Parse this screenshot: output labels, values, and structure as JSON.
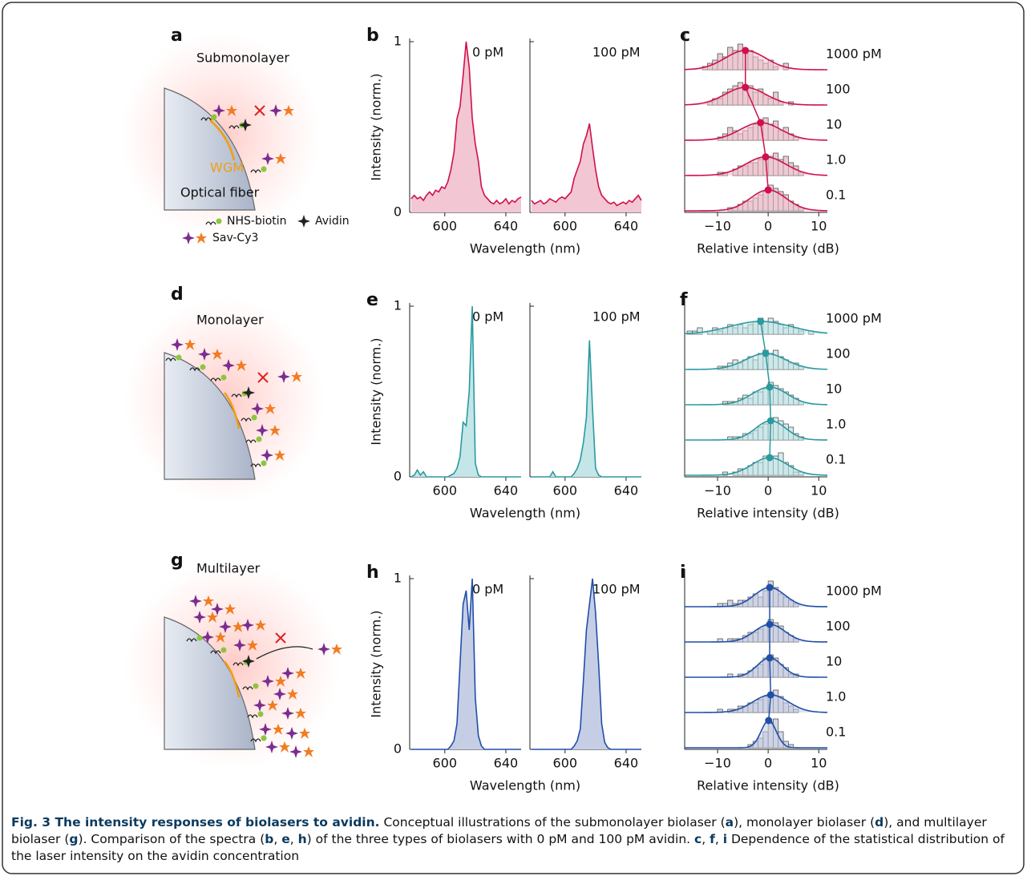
{
  "illustrations": [
    {
      "label": "a",
      "title": "Submonolayer",
      "wgm": "WGM",
      "fiber": "Optical fiber"
    },
    {
      "label": "d",
      "title": "Monolayer"
    },
    {
      "label": "g",
      "title": "Multilayer"
    }
  ],
  "legend": {
    "nhs_biotin": "NHS-biotin",
    "avidin": "Avidin",
    "sav_cy3": "Sav-Cy3"
  },
  "chart_data": [
    {
      "type": "spectrum",
      "panel_label": "b",
      "ylabel": "Intensity (norm.)",
      "xlabel": "Wavelength (nm)",
      "color": "#d0104c",
      "fill_color": "#f2c6d2",
      "xlim": [
        577,
        650
      ],
      "xticks": [
        600,
        640
      ],
      "ylim": [
        0,
        1
      ],
      "yticks": [
        0,
        1
      ],
      "x": [
        578,
        580,
        582,
        584,
        586,
        588,
        590,
        592,
        594,
        596,
        598,
        600,
        602,
        604,
        606,
        608,
        610,
        612,
        614,
        616,
        618,
        620,
        622,
        624,
        626,
        628,
        630,
        632,
        634,
        636,
        638,
        640,
        642,
        644,
        646,
        648,
        650
      ],
      "series": [
        {
          "name": "0 pM",
          "values": [
            0.08,
            0.1,
            0.08,
            0.09,
            0.07,
            0.1,
            0.12,
            0.1,
            0.13,
            0.12,
            0.15,
            0.14,
            0.18,
            0.25,
            0.35,
            0.55,
            0.62,
            0.8,
            1.0,
            0.85,
            0.55,
            0.4,
            0.3,
            0.15,
            0.1,
            0.08,
            0.06,
            0.05,
            0.07,
            0.05,
            0.06,
            0.08,
            0.05,
            0.07,
            0.06,
            0.08,
            0.09
          ]
        },
        {
          "name": "100 pM",
          "values": [
            0.07,
            0.05,
            0.06,
            0.07,
            0.05,
            0.06,
            0.08,
            0.07,
            0.06,
            0.08,
            0.09,
            0.08,
            0.1,
            0.12,
            0.2,
            0.25,
            0.3,
            0.4,
            0.45,
            0.52,
            0.38,
            0.25,
            0.15,
            0.1,
            0.08,
            0.06,
            0.05,
            0.06,
            0.04,
            0.05,
            0.06,
            0.05,
            0.07,
            0.06,
            0.08,
            0.1,
            0.07
          ]
        }
      ]
    },
    {
      "type": "ridgeline",
      "panel_label": "c",
      "xlabel": "Relative intensity (dB)",
      "color": "#d0104c",
      "fill_color": "#f2c6d2",
      "bar_color": "#e9cbd2",
      "xlim": [
        -16.5,
        11.7
      ],
      "xticks": [
        {
          "value": -10,
          "label": "−10"
        },
        0,
        10
      ],
      "bins": [
        -16,
        -15,
        -14,
        -13,
        -12,
        -11,
        -10,
        -9,
        -8,
        -7,
        -6,
        -5,
        -4,
        -3,
        -2,
        -1,
        0,
        1,
        2,
        3,
        4,
        5,
        6,
        7,
        8,
        9,
        10
      ],
      "series": [
        {
          "name": "1000 pM",
          "counts": [
            0,
            0,
            0,
            1,
            2,
            3,
            5,
            4,
            7,
            6,
            8,
            5,
            6,
            4,
            3,
            2,
            3,
            1,
            0,
            2,
            0,
            0,
            0,
            0,
            0,
            0
          ],
          "fit_mean": -4.5,
          "fit_sd": 4,
          "fit_height": 6
        },
        {
          "name": "100",
          "counts": [
            0,
            0,
            0,
            0,
            1,
            2,
            2,
            4,
            5,
            6,
            7,
            5,
            6,
            4,
            5,
            3,
            2,
            4,
            1,
            0,
            1,
            0,
            0,
            0,
            0,
            0
          ],
          "fit_mean": -4.5,
          "fit_sd": 4,
          "fit_height": 5.5
        },
        {
          "name": "10",
          "counts": [
            0,
            0,
            0,
            0,
            0,
            0,
            1,
            2,
            4,
            3,
            2,
            3,
            4,
            5,
            6,
            7,
            5,
            6,
            3,
            4,
            2,
            1,
            0,
            0,
            0,
            0
          ],
          "fit_mean": -1.5,
          "fit_sd": 4,
          "fit_height": 5.5
        },
        {
          "name": "1.0",
          "counts": [
            0,
            0,
            0,
            0,
            0,
            0,
            1,
            1,
            0,
            2,
            3,
            3,
            4,
            4,
            5,
            6,
            6,
            7,
            5,
            6,
            4,
            3,
            1,
            0,
            0,
            0
          ],
          "fit_mean": -0.5,
          "fit_sd": 4,
          "fit_height": 5.8
        },
        {
          "name": "0.1",
          "counts": [
            0,
            0,
            0,
            0,
            0,
            0,
            0,
            0,
            1,
            1,
            2,
            3,
            3,
            4,
            5,
            6,
            8,
            7,
            6,
            5,
            3,
            2,
            1,
            0,
            0,
            0
          ],
          "fit_mean": 0,
          "fit_sd": 3.5,
          "fit_height": 6.5
        }
      ]
    },
    {
      "type": "spectrum",
      "panel_label": "e",
      "ylabel": "Intensity (norm.)",
      "xlabel": "Wavelength (nm)",
      "color": "#2a9aa0",
      "fill_color": "#c4e6e8",
      "xlim": [
        577,
        650
      ],
      "xticks": [
        600,
        640
      ],
      "ylim": [
        0,
        1
      ],
      "yticks": [
        0,
        1
      ],
      "x": [
        578,
        580,
        582,
        584,
        586,
        588,
        590,
        592,
        594,
        596,
        598,
        600,
        602,
        604,
        606,
        608,
        610,
        612,
        614,
        616,
        618,
        620,
        622,
        624,
        626,
        628,
        630,
        632,
        634,
        636,
        638,
        640,
        642,
        644,
        646,
        648,
        650
      ],
      "series": [
        {
          "name": "0 pM",
          "values": [
            0,
            0.01,
            0.04,
            0.01,
            0.03,
            0,
            0,
            0,
            0,
            0,
            0,
            0,
            0,
            0.01,
            0.02,
            0.05,
            0.12,
            0.32,
            0.3,
            0.5,
            1.0,
            0.08,
            0.01,
            0,
            0,
            0,
            0,
            0,
            0,
            0,
            0,
            0,
            0,
            0,
            0,
            0,
            0
          ]
        },
        {
          "name": "100 pM",
          "values": [
            0,
            0,
            0,
            0,
            0,
            0,
            0,
            0.03,
            0,
            0,
            0,
            0,
            0,
            0,
            0.02,
            0.05,
            0.1,
            0.2,
            0.35,
            0.8,
            0.4,
            0.05,
            0.01,
            0,
            0,
            0,
            0,
            0,
            0,
            0,
            0,
            0,
            0,
            0,
            0,
            0,
            0
          ]
        }
      ]
    },
    {
      "type": "ridgeline",
      "panel_label": "f",
      "xlabel": "Relative intensity (dB)",
      "color": "#2a9aa0",
      "fill_color": "#c4e6e8",
      "bar_color": "#d3ecee",
      "xlim": [
        -16.5,
        11.7
      ],
      "xticks": [
        {
          "value": -10,
          "label": "−10"
        },
        0,
        10
      ],
      "bins": [
        -16,
        -15,
        -14,
        -13,
        -12,
        -11,
        -10,
        -9,
        -8,
        -7,
        -6,
        -5,
        -4,
        -3,
        -2,
        -1,
        0,
        1,
        2,
        3,
        4,
        5,
        6,
        7,
        8,
        9,
        10
      ],
      "series": [
        {
          "name": "1000 pM",
          "counts": [
            1,
            1,
            2,
            0,
            1,
            2,
            1,
            2,
            3,
            2,
            3,
            2,
            3,
            4,
            5,
            4,
            5,
            4,
            3,
            2,
            3,
            2,
            1,
            0,
            1,
            0
          ],
          "fit_mean": -1.5,
          "fit_sd": 6,
          "fit_height": 4
        },
        {
          "name": "100",
          "counts": [
            0,
            0,
            0,
            0,
            0,
            0,
            1,
            1,
            2,
            3,
            2,
            3,
            4,
            3,
            5,
            6,
            5,
            6,
            4,
            3,
            2,
            2,
            1,
            0,
            0,
            0
          ],
          "fit_mean": -0.5,
          "fit_sd": 4,
          "fit_height": 5
        },
        {
          "name": "10",
          "counts": [
            0,
            0,
            0,
            0,
            0,
            0,
            0,
            1,
            1,
            1,
            2,
            3,
            2,
            4,
            4,
            5,
            7,
            6,
            5,
            4,
            3,
            2,
            1,
            0,
            0,
            0
          ],
          "fit_mean": 0.3,
          "fit_sd": 3.5,
          "fit_height": 5.5
        },
        {
          "name": "1.0",
          "counts": [
            0,
            0,
            0,
            0,
            0,
            0,
            0,
            0,
            1,
            1,
            1,
            2,
            2,
            3,
            4,
            5,
            6,
            7,
            6,
            5,
            4,
            2,
            1,
            0,
            0,
            0
          ],
          "fit_mean": 0.5,
          "fit_sd": 3,
          "fit_height": 6
        },
        {
          "name": "0.1",
          "counts": [
            0,
            0,
            0,
            0,
            0,
            0,
            0,
            1,
            0,
            1,
            2,
            2,
            3,
            4,
            4,
            6,
            5,
            6,
            7,
            4,
            3,
            1,
            1,
            0,
            0,
            0
          ],
          "fit_mean": 0.3,
          "fit_sd": 3.5,
          "fit_height": 5.5
        }
      ]
    },
    {
      "type": "spectrum",
      "panel_label": "h",
      "ylabel": "Intensity (norm.)",
      "xlabel": "Wavelength (nm)",
      "color": "#1f4fa8",
      "fill_color": "#c6cee6",
      "xlim": [
        577,
        650
      ],
      "xticks": [
        600,
        640
      ],
      "ylim": [
        0,
        1
      ],
      "yticks": [
        0,
        1
      ],
      "x": [
        578,
        580,
        582,
        584,
        586,
        588,
        590,
        592,
        594,
        596,
        598,
        600,
        602,
        604,
        606,
        608,
        610,
        612,
        614,
        616,
        618,
        620,
        622,
        624,
        626,
        628,
        630,
        632,
        634,
        636,
        638,
        640,
        642,
        644,
        646,
        648,
        650
      ],
      "series": [
        {
          "name": "0 pM",
          "values": [
            0,
            0,
            0,
            0,
            0,
            0,
            0,
            0,
            0,
            0,
            0,
            0,
            0,
            0.02,
            0.05,
            0.15,
            0.5,
            0.85,
            0.93,
            0.7,
            1.0,
            0.3,
            0.08,
            0.02,
            0,
            0,
            0,
            0,
            0,
            0,
            0,
            0,
            0,
            0,
            0,
            0,
            0
          ]
        },
        {
          "name": "100 pM",
          "values": [
            0,
            0,
            0,
            0,
            0,
            0,
            0,
            0,
            0,
            0,
            0,
            0,
            0,
            0,
            0.02,
            0.05,
            0.12,
            0.4,
            0.7,
            0.85,
            1.0,
            0.8,
            0.5,
            0.15,
            0.04,
            0.01,
            0,
            0,
            0,
            0,
            0,
            0,
            0,
            0,
            0,
            0,
            0
          ]
        }
      ]
    },
    {
      "type": "ridgeline",
      "panel_label": "i",
      "xlabel": "Relative intensity (dB)",
      "color": "#1f4fa8",
      "fill_color": "#c6cee6",
      "bar_color": "#d4d8e6",
      "xlim": [
        -16.5,
        11.7
      ],
      "xticks": [
        {
          "value": -10,
          "label": "−10"
        },
        0,
        10
      ],
      "bins": [
        -16,
        -15,
        -14,
        -13,
        -12,
        -11,
        -10,
        -9,
        -8,
        -7,
        -6,
        -5,
        -4,
        -3,
        -2,
        -1,
        0,
        1,
        2,
        3,
        4,
        5,
        6,
        7,
        8,
        9,
        10
      ],
      "series": [
        {
          "name": "1000 pM",
          "counts": [
            0,
            0,
            0,
            0,
            0,
            0,
            1,
            1,
            2,
            1,
            2,
            2,
            3,
            4,
            3,
            5,
            8,
            6,
            4,
            3,
            2,
            1,
            0,
            0,
            0,
            0
          ],
          "fit_mean": 0.3,
          "fit_sd": 3,
          "fit_height": 6
        },
        {
          "name": "100",
          "counts": [
            0,
            0,
            0,
            0,
            0,
            0,
            1,
            0,
            1,
            1,
            1,
            2,
            3,
            3,
            4,
            5,
            7,
            6,
            5,
            3,
            2,
            1,
            0,
            0,
            0,
            0
          ],
          "fit_mean": 0.3,
          "fit_sd": 3,
          "fit_height": 5.5
        },
        {
          "name": "10",
          "counts": [
            0,
            0,
            0,
            0,
            0,
            0,
            0,
            0,
            1,
            0,
            1,
            1,
            2,
            3,
            4,
            6,
            7,
            6,
            4,
            3,
            1,
            1,
            0,
            0,
            0,
            0
          ],
          "fit_mean": 0.3,
          "fit_sd": 2.5,
          "fit_height": 6
        },
        {
          "name": "1.0",
          "counts": [
            0,
            0,
            0,
            0,
            0,
            0,
            1,
            0,
            1,
            1,
            2,
            2,
            3,
            3,
            4,
            5,
            6,
            7,
            5,
            3,
            2,
            1,
            0,
            0,
            0,
            0
          ],
          "fit_mean": 0.5,
          "fit_sd": 3.5,
          "fit_height": 5.5
        },
        {
          "name": "0.1",
          "counts": [
            0,
            0,
            0,
            0,
            0,
            0,
            0,
            0,
            0,
            0,
            0,
            0,
            1,
            2,
            3,
            5,
            8,
            9,
            5,
            2,
            1,
            0,
            0,
            0,
            0,
            0
          ],
          "fit_mean": 0.1,
          "fit_sd": 1.5,
          "fit_height": 8.5
        }
      ]
    }
  ],
  "caption": {
    "segments": [
      {
        "text": "Fig. 3 The intensity responses of biolasers to avidin.",
        "bold": true
      },
      {
        "text": " Conceptual illustrations of the submonolayer biolaser (",
        "bold": false
      },
      {
        "text": "a",
        "bold": true
      },
      {
        "text": "), monolayer biolaser (",
        "bold": false
      },
      {
        "text": "d",
        "bold": true
      },
      {
        "text": "), and multilayer biolaser (",
        "bold": false
      },
      {
        "text": "g",
        "bold": true
      },
      {
        "text": "). Comparison of the spectra (",
        "bold": false
      },
      {
        "text": "b",
        "bold": true
      },
      {
        "text": ", ",
        "bold": false
      },
      {
        "text": "e",
        "bold": true
      },
      {
        "text": ", ",
        "bold": false
      },
      {
        "text": "h",
        "bold": true
      },
      {
        "text": ") of the three types of biolasers with 0 pM and 100 pM avidin. ",
        "bold": false
      },
      {
        "text": "c",
        "bold": true
      },
      {
        "text": ", ",
        "bold": false
      },
      {
        "text": "f",
        "bold": true
      },
      {
        "text": ", ",
        "bold": false
      },
      {
        "text": "i",
        "bold": true
      },
      {
        "text": " Dependence of the statistical distribution of the laser intensity on the avidin concentration",
        "bold": false
      }
    ]
  }
}
